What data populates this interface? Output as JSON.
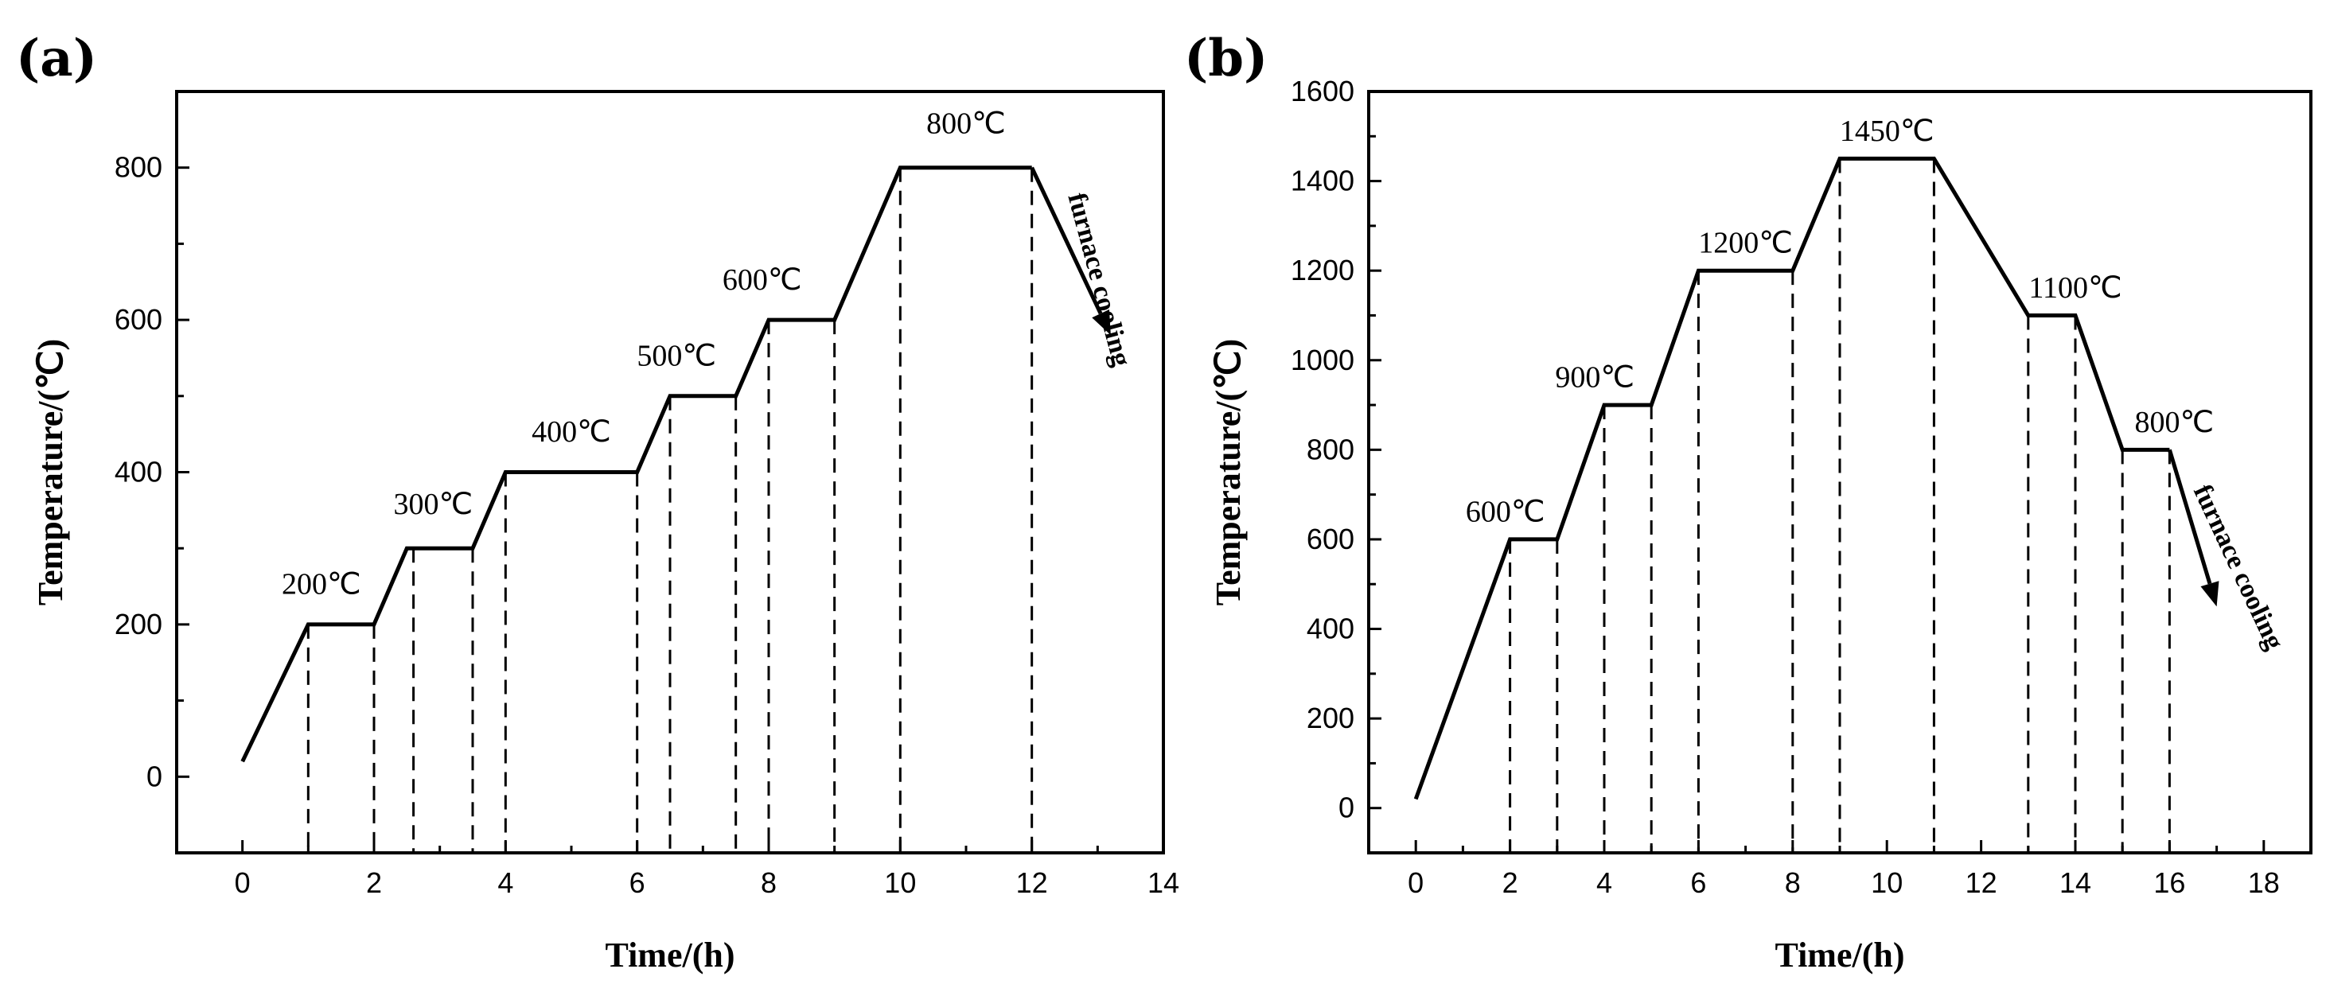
{
  "chart_data": [
    {
      "type": "line",
      "panel_label": "(a)",
      "xlabel": "Time/(h)",
      "ylabel": "Temperature/(℃)",
      "xlim": [
        -1,
        14
      ],
      "ylim": [
        -100,
        900
      ],
      "xticks": [
        0,
        2,
        4,
        6,
        8,
        10,
        12,
        14
      ],
      "yticks": [
        0,
        200,
        400,
        600,
        800
      ],
      "x_minor_step": 1,
      "y_minor_step": 100,
      "x": [
        0,
        1,
        2,
        2.5,
        3.5,
        4,
        6,
        6.5,
        7.5,
        8,
        9,
        10,
        12
      ],
      "y": [
        20,
        200,
        200,
        300,
        300,
        400,
        400,
        500,
        500,
        600,
        600,
        800,
        800
      ],
      "cooling_arrow": {
        "from": [
          12,
          800
        ],
        "to": [
          13.2,
          580
        ]
      },
      "dashed_times": [
        1,
        2,
        2.6,
        3.5,
        4,
        6,
        6.5,
        7.5,
        8,
        9,
        10,
        12
      ],
      "temp_labels": [
        {
          "text": "200℃",
          "x": 1.2,
          "y": 240
        },
        {
          "text": "300℃",
          "x": 2.9,
          "y": 345
        },
        {
          "text": "400℃",
          "x": 5.0,
          "y": 440
        },
        {
          "text": "500℃",
          "x": 6.6,
          "y": 540
        },
        {
          "text": "600℃",
          "x": 7.9,
          "y": 640
        },
        {
          "text": "800℃",
          "x": 11.0,
          "y": 845
        }
      ],
      "annotation": {
        "text": "furnace cooling",
        "x": 12.9,
        "y": 650,
        "rotation": 75
      }
    },
    {
      "type": "line",
      "panel_label": "(b)",
      "xlabel": "Time/(h)",
      "ylabel": "Temperature/(℃)",
      "xlim": [
        -1,
        19
      ],
      "ylim": [
        -100,
        1600
      ],
      "xticks": [
        0,
        2,
        4,
        6,
        8,
        10,
        12,
        14,
        16,
        18
      ],
      "yticks": [
        0,
        200,
        400,
        600,
        800,
        1000,
        1200,
        1400,
        1600
      ],
      "x_minor_step": 1,
      "y_minor_step": 100,
      "x": [
        0,
        2,
        3,
        4,
        5,
        6,
        8,
        9,
        11,
        13,
        14,
        15,
        16
      ],
      "y": [
        20,
        600,
        600,
        900,
        900,
        1200,
        1200,
        1450,
        1450,
        1100,
        1100,
        800,
        800
      ],
      "cooling_arrow": {
        "from": [
          16,
          800
        ],
        "to": [
          17.0,
          450
        ]
      },
      "dashed_times": [
        2,
        3,
        4,
        5,
        6,
        8,
        9,
        11,
        13,
        14,
        15,
        16
      ],
      "temp_labels": [
        {
          "text": "600℃",
          "x": 1.9,
          "y": 640
        },
        {
          "text": "900℃",
          "x": 3.8,
          "y": 940
        },
        {
          "text": "1200℃",
          "x": 7.0,
          "y": 1240
        },
        {
          "text": "1450℃",
          "x": 10.0,
          "y": 1490
        },
        {
          "text": "1100℃",
          "x": 14.0,
          "y": 1140
        },
        {
          "text": "800℃",
          "x": 16.1,
          "y": 840
        }
      ],
      "annotation": {
        "text": "furnace cooling",
        "x": 17.3,
        "y": 530,
        "rotation": 65
      }
    }
  ]
}
